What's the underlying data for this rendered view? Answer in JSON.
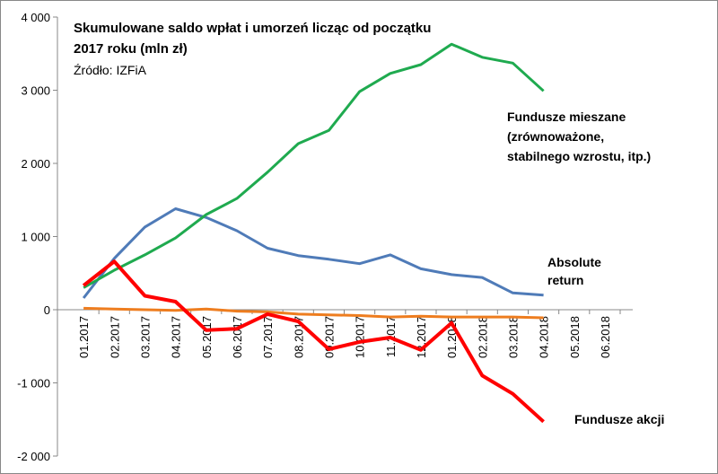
{
  "chart_data": {
    "type": "line",
    "title": [
      "Skumulowane saldo wpłat i umorzeń licząc od początku",
      "2017 roku (mln zł)"
    ],
    "subtitle": "Źródło: IZFiA",
    "categories": [
      "01.2017",
      "02.2017",
      "03.2017",
      "04.2017",
      "05.2017",
      "06.2017",
      "07.2017",
      "08.2017",
      "09.2017",
      "10.2017",
      "11.2017",
      "12.2017",
      "01.2018",
      "02.2018",
      "03.2018",
      "04.2018",
      "05.2018",
      "06.2018"
    ],
    "series": [
      {
        "name": [
          "Fundusze mieszane",
          "(zrównoważone,",
          "stabilnego wzrostu, itp.)"
        ],
        "color": "#1faa4f",
        "values": [
          300,
          540,
          750,
          980,
          1300,
          1520,
          1880,
          2270,
          2450,
          2980,
          3230,
          3350,
          3630,
          3450,
          3370,
          2990,
          null,
          null
        ]
      },
      {
        "name": [
          "Absolute",
          "return"
        ],
        "color": "#4f7bb8",
        "values": [
          160,
          700,
          1130,
          1380,
          1260,
          1080,
          840,
          740,
          690,
          630,
          750,
          560,
          480,
          440,
          230,
          200,
          null,
          null
        ]
      },
      {
        "color": "#ee7d1f",
        "values": [
          20,
          10,
          0,
          -10,
          10,
          -20,
          -30,
          -60,
          -70,
          -80,
          -100,
          -90,
          -100,
          -100,
          -100,
          -110,
          null,
          null
        ]
      },
      {
        "name": [
          "Fundusze akcji"
        ],
        "color": "#ff0000",
        "values": [
          330,
          660,
          190,
          110,
          -280,
          -260,
          -60,
          -160,
          -540,
          -440,
          -380,
          -550,
          -180,
          -900,
          -1150,
          -1530,
          null,
          null
        ]
      }
    ],
    "ylim": [
      -2000,
      4000
    ],
    "yticks": [
      {
        "value": -2000,
        "label": "-2 000"
      },
      {
        "value": -1000,
        "label": "-1 000"
      },
      0,
      {
        "value": 1000,
        "label": "1 000"
      },
      {
        "value": 2000,
        "label": "2 000"
      },
      {
        "value": 3000,
        "label": "3 000"
      },
      {
        "value": 4000,
        "label": "4 000"
      }
    ]
  }
}
